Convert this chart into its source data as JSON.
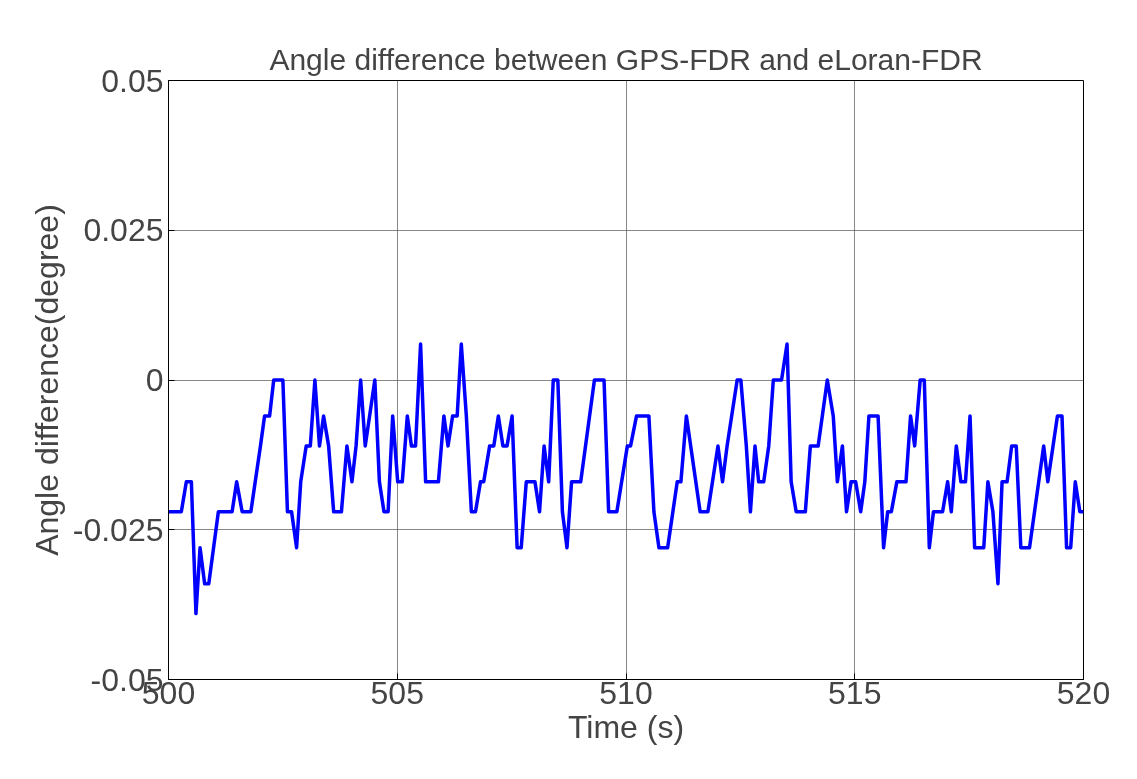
{
  "chart_data": {
    "type": "line",
    "title": "Angle difference between GPS-FDR and eLoran-FDR",
    "xlabel": "Time (s)",
    "ylabel": "Angle difference(degree)",
    "xlim": [
      500,
      520
    ],
    "xticks": [
      500,
      505,
      510,
      515,
      520
    ],
    "ylim": [
      -0.05,
      0.05
    ],
    "yticks": [
      -0.05,
      -0.025,
      0,
      0.025,
      0.05
    ],
    "grid": true,
    "line_style": "solid",
    "series": [
      {
        "color": "#0000ff",
        "x": [
          500.0,
          500.28,
          500.39,
          500.5,
          500.6,
          500.69,
          500.79,
          500.88,
          501.09,
          501.39,
          501.49,
          501.61,
          501.8,
          502.01,
          502.1,
          502.21,
          502.3,
          502.5,
          502.6,
          502.69,
          502.8,
          502.89,
          503.01,
          503.1,
          503.2,
          503.3,
          503.39,
          503.5,
          503.61,
          503.78,
          503.9,
          504.01,
          504.1,
          504.2,
          504.3,
          504.51,
          504.61,
          504.71,
          504.8,
          504.9,
          505.01,
          505.11,
          505.22,
          505.31,
          505.4,
          505.51,
          505.62,
          505.9,
          506.02,
          506.11,
          506.21,
          506.31,
          506.4,
          506.51,
          506.62,
          506.71,
          506.82,
          506.89,
          507.02,
          507.11,
          507.21,
          507.31,
          507.4,
          507.51,
          507.62,
          507.71,
          507.82,
          508.01,
          508.11,
          508.21,
          508.31,
          508.41,
          508.51,
          508.61,
          508.71,
          508.81,
          509.01,
          509.31,
          509.52,
          509.62,
          509.8,
          510.03,
          510.1,
          510.23,
          510.5,
          510.61,
          510.72,
          510.91,
          511.12,
          511.2,
          511.32,
          511.62,
          511.79,
          512.01,
          512.11,
          512.21,
          512.43,
          512.51,
          512.63,
          512.72,
          512.82,
          512.9,
          513.01,
          513.12,
          513.22,
          513.4,
          513.52,
          513.61,
          513.72,
          513.92,
          514.03,
          514.2,
          514.4,
          514.53,
          514.62,
          514.73,
          514.82,
          514.92,
          515.02,
          515.13,
          515.22,
          515.31,
          515.51,
          515.63,
          515.72,
          515.8,
          515.92,
          516.12,
          516.22,
          516.31,
          516.43,
          516.52,
          516.63,
          516.72,
          516.92,
          517.03,
          517.11,
          517.22,
          517.32,
          517.42,
          517.52,
          517.62,
          517.82,
          517.91,
          518.02,
          518.13,
          518.22,
          518.33,
          518.43,
          518.53,
          518.63,
          518.82,
          519.13,
          519.22,
          519.43,
          519.53,
          519.63,
          519.72,
          519.82,
          519.92,
          520.0
        ],
        "values": [
          -0.022,
          -0.022,
          -0.017,
          -0.017,
          -0.039,
          -0.028,
          -0.034,
          -0.034,
          -0.022,
          -0.022,
          -0.017,
          -0.022,
          -0.022,
          -0.011,
          -0.006,
          -0.006,
          0,
          0,
          -0.022,
          -0.022,
          -0.028,
          -0.017,
          -0.011,
          -0.011,
          0,
          -0.011,
          -0.006,
          -0.011,
          -0.022,
          -0.022,
          -0.011,
          -0.017,
          -0.011,
          0,
          -0.011,
          0,
          -0.017,
          -0.022,
          -0.022,
          -0.006,
          -0.017,
          -0.017,
          -0.006,
          -0.011,
          -0.011,
          0.006,
          -0.017,
          -0.017,
          -0.006,
          -0.011,
          -0.006,
          -0.006,
          0.006,
          -0.006,
          -0.022,
          -0.022,
          -0.017,
          -0.017,
          -0.011,
          -0.011,
          -0.006,
          -0.011,
          -0.011,
          -0.006,
          -0.028,
          -0.028,
          -0.017,
          -0.017,
          -0.022,
          -0.011,
          -0.017,
          0,
          0,
          -0.022,
          -0.028,
          -0.017,
          -0.017,
          0,
          0,
          -0.022,
          -0.022,
          -0.011,
          -0.011,
          -0.006,
          -0.006,
          -0.022,
          -0.028,
          -0.028,
          -0.017,
          -0.017,
          -0.006,
          -0.022,
          -0.022,
          -0.011,
          -0.017,
          -0.011,
          0,
          0,
          -0.011,
          -0.022,
          -0.011,
          -0.017,
          -0.017,
          -0.011,
          0,
          0,
          0.006,
          -0.017,
          -0.022,
          -0.022,
          -0.011,
          -0.011,
          0,
          -0.006,
          -0.017,
          -0.011,
          -0.022,
          -0.017,
          -0.017,
          -0.022,
          -0.017,
          -0.006,
          -0.006,
          -0.028,
          -0.022,
          -0.022,
          -0.017,
          -0.017,
          -0.006,
          -0.011,
          0,
          0,
          -0.028,
          -0.022,
          -0.022,
          -0.017,
          -0.022,
          -0.011,
          -0.017,
          -0.017,
          -0.006,
          -0.028,
          -0.028,
          -0.017,
          -0.022,
          -0.034,
          -0.017,
          -0.017,
          -0.011,
          -0.011,
          -0.028,
          -0.028,
          -0.011,
          -0.017,
          -0.006,
          -0.006,
          -0.028,
          -0.028,
          -0.017,
          -0.022,
          -0.022
        ]
      }
    ]
  }
}
